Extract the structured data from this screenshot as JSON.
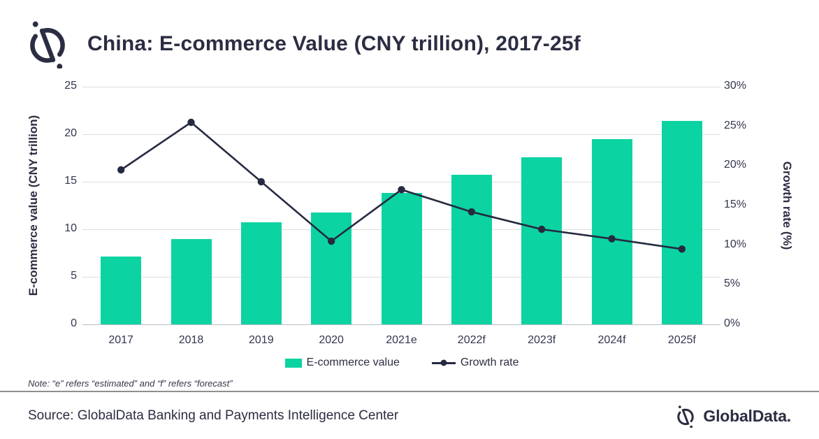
{
  "header": {
    "title": "China: E-commerce Value (CNY trillion), 2017-25f"
  },
  "chart_data": {
    "type": "bar",
    "title": "China: E-commerce Value (CNY trillion), 2017-25f",
    "categories": [
      "2017",
      "2018",
      "2019",
      "2020",
      "2021e",
      "2022f",
      "2023f",
      "2024f",
      "2025f"
    ],
    "series": [
      {
        "name": "E-commerce value",
        "type": "bar",
        "axis": "left",
        "values": [
          7.1,
          9.0,
          10.7,
          11.8,
          13.8,
          15.7,
          17.6,
          19.5,
          21.4
        ]
      },
      {
        "name": "Growth rate",
        "type": "line",
        "axis": "right",
        "values": [
          19.5,
          25.5,
          18.0,
          10.5,
          17.0,
          14.2,
          12.0,
          10.8,
          9.5
        ]
      }
    ],
    "left_axis": {
      "label": "E-commerce value (CNY trillion)",
      "min": 0,
      "max": 25,
      "ticks": [
        0,
        5,
        10,
        15,
        20,
        25
      ]
    },
    "right_axis": {
      "label": "Growth rate (%)",
      "min": 0,
      "max": 30,
      "ticks": [
        "0%",
        "5%",
        "10%",
        "15%",
        "20%",
        "25%",
        "30%"
      ]
    },
    "grid": "horizontal",
    "legend_position": "bottom"
  },
  "legend": {
    "items": [
      {
        "label": "E-commerce value",
        "swatch": "bar"
      },
      {
        "label": "Growth rate",
        "swatch": "line"
      }
    ]
  },
  "note": "Note: “e” refers “estimated” and “f” refers “forecast”",
  "footer": {
    "source": "Source: GlobalData Banking and Payments Intelligence Center",
    "brand": "GlobalData."
  },
  "colors": {
    "bar": "#0cd3a2",
    "line": "#262a41",
    "title_text": "#2b2d42",
    "grid": "#dcdcdc",
    "separator": "#8f8f8f"
  }
}
